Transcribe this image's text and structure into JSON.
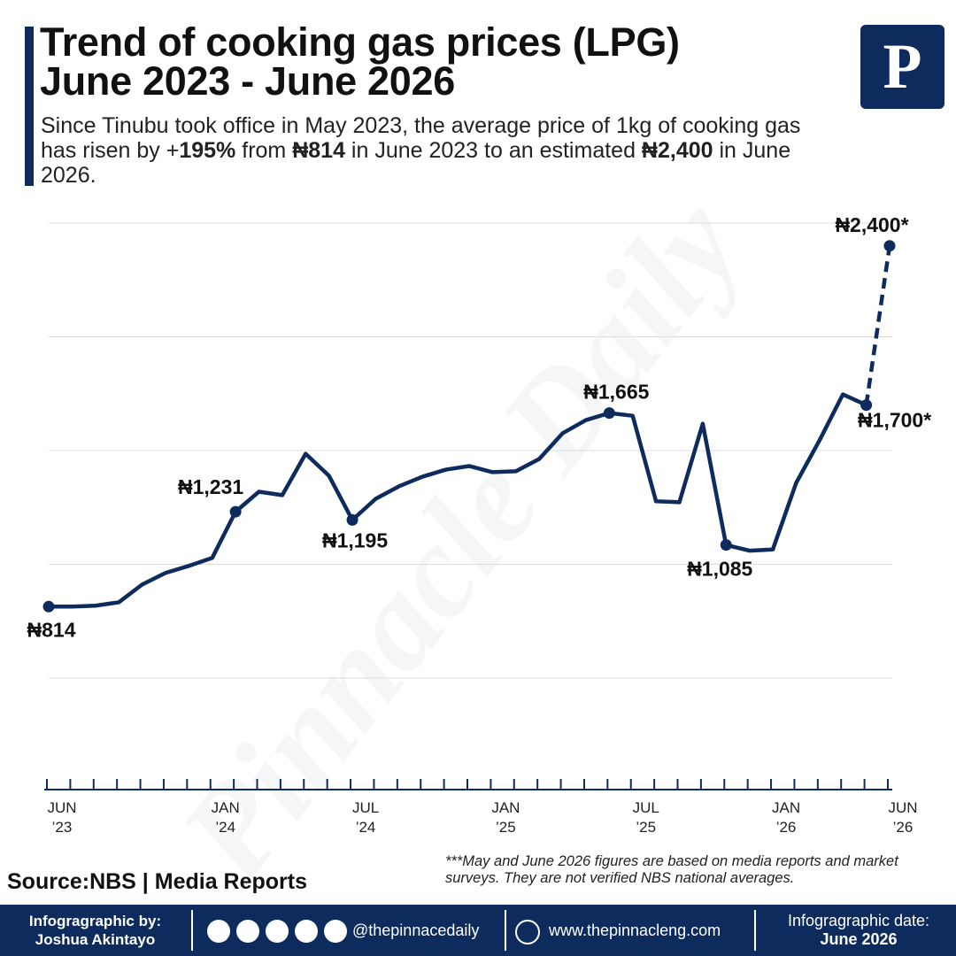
{
  "chart_data": {
    "type": "line",
    "title": [
      "Trend of cooking gas prices (LPG)",
      "June 2023 - June 2026"
    ],
    "subtitle": [
      "Since Tinubu took office in May 2023, the average price of 1kg of cooking gas has risen by +",
      "195%",
      " from ",
      "₦814",
      " in June 2023 to an estimated ",
      "₦2,400",
      " in June 2026."
    ],
    "categories": [
      "JUN ’23",
      null,
      null,
      null,
      null,
      null,
      null,
      "JAN ’24",
      null,
      null,
      null,
      null,
      null,
      "JUL ’24",
      null,
      null,
      null,
      null,
      null,
      "JAN ’25",
      null,
      null,
      null,
      null,
      null,
      "JUL ’25",
      null,
      null,
      null,
      null,
      null,
      "JAN ’26",
      null,
      null,
      null,
      null,
      "JUN ’26"
    ],
    "values": [
      814,
      814,
      818,
      833,
      911,
      962,
      993,
      1028,
      1231,
      1319,
      1304,
      1486,
      1389,
      1195,
      1288,
      1343,
      1385,
      1416,
      1432,
      1405,
      1409,
      1463,
      1576,
      1634,
      1665,
      1653,
      1277,
      1273,
      1618,
      1085,
      1060,
      1065,
      1358,
      1545,
      1747,
      1700,
      2400
    ],
    "value_labels": [
      "₦814",
      null,
      null,
      null,
      null,
      null,
      null,
      null,
      "₦1,231",
      null,
      null,
      null,
      null,
      "₦1,195",
      null,
      null,
      null,
      null,
      null,
      null,
      null,
      null,
      null,
      null,
      "₦1,665",
      null,
      null,
      null,
      null,
      "₦1,085",
      null,
      null,
      null,
      null,
      null,
      "₦1,700*",
      "₦2,400*"
    ],
    "dashed_from_index": 35,
    "color": "#0d2b5c",
    "ylim": [
      0,
      2500
    ],
    "yticks": [
      500,
      1000,
      1500,
      2000,
      2500
    ],
    "grid": true,
    "watermark": "Pinnacle Daily",
    "source": "Source:NBS | Media Reports",
    "note": "***May and June 2026 figures are based on media reports and market surveys. They are not verified NBS national averages."
  },
  "logo": "P",
  "footer": {
    "credit_label": "Infogragraphic by:",
    "credit_name": "Joshua Akintayo",
    "handle": "@thepinnacedaily",
    "website": "www.thepinnacleng.com",
    "date_label": "Infogragraphic date:",
    "date": "June 2026"
  }
}
